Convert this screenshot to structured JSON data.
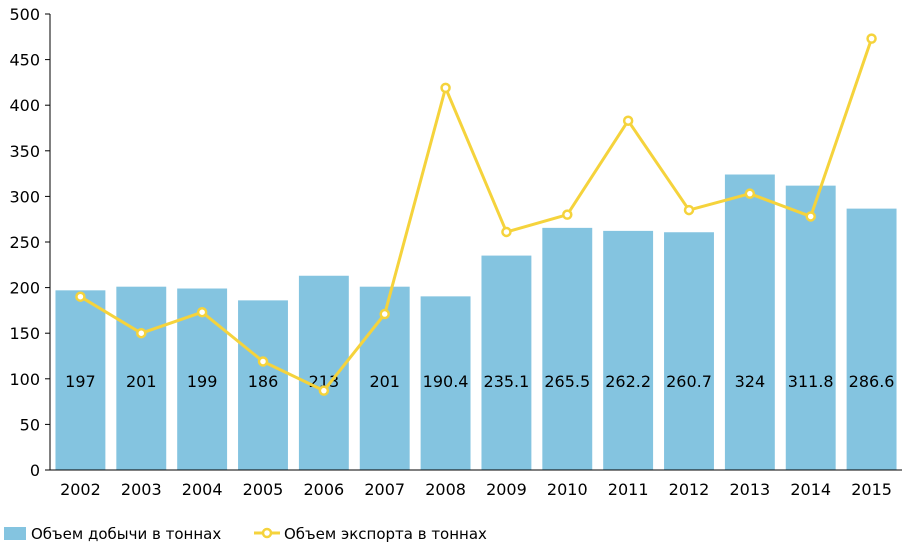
{
  "chart_data": {
    "type": "bar",
    "categories": [
      "2002",
      "2003",
      "2004",
      "2005",
      "2006",
      "2007",
      "2008",
      "2009",
      "2010",
      "2011",
      "2012",
      "2013",
      "2014",
      "2015"
    ],
    "series": [
      {
        "name": "Объем добычи в тоннах",
        "type": "bar",
        "color": "#84c4e0",
        "values": [
          197,
          201,
          199,
          186,
          213,
          201,
          190.4,
          235.1,
          265.5,
          262.2,
          260.7,
          324,
          311.8,
          286.6
        ],
        "labels": [
          "197",
          "201",
          "199",
          "186",
          "213",
          "201",
          "190.4",
          "235.1",
          "265.5",
          "262.2",
          "260.7",
          "324",
          "311.8",
          "286.6"
        ]
      },
      {
        "name": "Объем экспорта в тоннах",
        "type": "line",
        "color": "#f5d33c",
        "values": [
          190,
          150,
          173,
          119,
          87,
          171,
          419,
          261,
          280,
          383,
          285,
          303,
          278,
          473
        ]
      }
    ],
    "ylim": [
      0,
      500
    ],
    "yticks": [
      "0",
      "50",
      "100",
      "150",
      "200",
      "250",
      "300",
      "350",
      "400",
      "450",
      "500"
    ],
    "grid": false,
    "legend": "bottom-left"
  }
}
